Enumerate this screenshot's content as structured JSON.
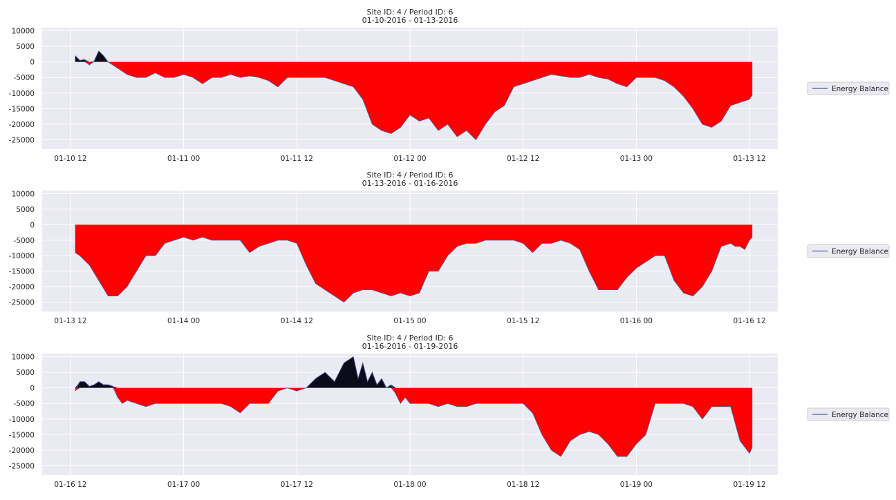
{
  "chart_data": [
    {
      "type": "area",
      "title_line1": "Site ID: 4 / Period ID: 6",
      "title_line2": "01-10-2016 - 01-13-2016",
      "legend": "Energy Balance",
      "legend_placement": "center-right",
      "grid": true,
      "ylim": [
        -28000,
        11000
      ],
      "yticks": [
        10000,
        5000,
        0,
        -5000,
        -10000,
        -15000,
        -20000,
        -25000
      ],
      "xlim_hours": [
        -3,
        75
      ],
      "xticks": [
        "01-10 12",
        "01-11 00",
        "01-11 12",
        "01-12 00",
        "01-12 12",
        "01-13 00",
        "01-13 12"
      ],
      "x_start": "01-10 12",
      "x": [
        0.5,
        1,
        1.5,
        2,
        2.5,
        3,
        3.5,
        4,
        5,
        6,
        7,
        8,
        9,
        10,
        11,
        12,
        13,
        14,
        15,
        16,
        17,
        18,
        19,
        20,
        21,
        22,
        23,
        24,
        25,
        26,
        27,
        28,
        29,
        30,
        31,
        32,
        33,
        34,
        35,
        36,
        37,
        38,
        39,
        40,
        41,
        42,
        43,
        44,
        45,
        46,
        47,
        48,
        49,
        50,
        51,
        52,
        53,
        54,
        55,
        56,
        57,
        58,
        59,
        60,
        61,
        62,
        63,
        64,
        65,
        66,
        67,
        68,
        69,
        70,
        71,
        72,
        72.3
      ],
      "values": [
        2000,
        500,
        800,
        -1000,
        200,
        3500,
        2000,
        0,
        -2000,
        -4000,
        -5000,
        -5000,
        -3500,
        -5000,
        -5000,
        -4000,
        -5000,
        -7000,
        -5000,
        -5000,
        -4000,
        -5000,
        -4500,
        -5000,
        -6000,
        -8000,
        -5000,
        -5000,
        -5000,
        -5000,
        -5000,
        -6000,
        -7000,
        -8000,
        -12000,
        -20000,
        -22000,
        -23000,
        -21000,
        -17000,
        -19000,
        -18000,
        -22000,
        -20000,
        -24000,
        -22000,
        -25000,
        -20000,
        -16000,
        -14000,
        -8000,
        -7000,
        -6000,
        -5000,
        -4000,
        -4500,
        -5000,
        -5000,
        -4000,
        -5000,
        -5500,
        -7000,
        -8000,
        -5000,
        -5000,
        -5000,
        -6000,
        -8000,
        -11000,
        -15000,
        -20000,
        -21000,
        -19000,
        -14000,
        -13000,
        -12000,
        -10500
      ]
    },
    {
      "type": "area",
      "title_line1": "Site ID: 4 / Period ID: 6",
      "title_line2": "01-13-2016 - 01-16-2016",
      "legend": "Energy Balance",
      "legend_placement": "center-right",
      "grid": true,
      "ylim": [
        -28000,
        11000
      ],
      "yticks": [
        10000,
        5000,
        0,
        -5000,
        -10000,
        -15000,
        -20000,
        -25000
      ],
      "xlim_hours": [
        -3,
        75
      ],
      "xticks": [
        "01-13 12",
        "01-14 00",
        "01-14 12",
        "01-15 00",
        "01-15 12",
        "01-16 00",
        "01-16 12"
      ],
      "x_start": "01-13 12",
      "x": [
        0.5,
        1,
        2,
        3,
        4,
        5,
        6,
        7,
        8,
        9,
        10,
        11,
        12,
        13,
        14,
        15,
        16,
        17,
        18,
        19,
        20,
        21,
        22,
        23,
        24,
        25,
        26,
        27,
        28,
        29,
        30,
        31,
        32,
        33,
        34,
        35,
        36,
        37,
        38,
        39,
        40,
        41,
        42,
        43,
        44,
        45,
        46,
        47,
        48,
        49,
        50,
        51,
        52,
        53,
        54,
        55,
        56,
        57,
        58,
        59,
        60,
        61,
        62,
        63,
        64,
        65,
        66,
        67,
        68,
        69,
        70,
        70.5,
        71,
        71.5,
        72,
        72.3
      ],
      "values": [
        -9000,
        -10000,
        -13000,
        -18000,
        -23000,
        -23000,
        -20000,
        -15000,
        -10000,
        -10000,
        -6000,
        -5000,
        -4000,
        -5000,
        -4000,
        -5000,
        -5000,
        -5000,
        -5000,
        -9000,
        -7000,
        -6000,
        -5000,
        -5000,
        -6000,
        -13000,
        -19000,
        -21000,
        -23000,
        -25000,
        -22000,
        -21000,
        -21000,
        -22000,
        -23000,
        -22000,
        -23000,
        -22000,
        -15000,
        -15000,
        -10000,
        -7000,
        -6000,
        -6000,
        -5000,
        -5000,
        -5000,
        -5000,
        -6000,
        -9000,
        -6000,
        -6000,
        -5000,
        -6000,
        -8000,
        -15000,
        -21000,
        -21000,
        -21000,
        -17000,
        -14000,
        -12000,
        -10000,
        -10000,
        -18000,
        -22000,
        -23000,
        -20000,
        -15000,
        -7000,
        -6000,
        -7000,
        -7000,
        -8000,
        -5000,
        -4000
      ]
    },
    {
      "type": "area",
      "title_line1": "Site ID: 4 / Period ID: 6",
      "title_line2": "01-16-2016 - 01-19-2016",
      "legend": "Energy Balance",
      "legend_placement": "center-right",
      "grid": true,
      "ylim": [
        -28000,
        11000
      ],
      "yticks": [
        10000,
        5000,
        0,
        -5000,
        -10000,
        -15000,
        -20000,
        -25000
      ],
      "xlim_hours": [
        -3,
        75
      ],
      "xticks": [
        "01-16 12",
        "01-17 00",
        "01-17 12",
        "01-18 00",
        "01-18 12",
        "01-19 00",
        "01-19 12"
      ],
      "x_start": "01-16 12",
      "x": [
        0.5,
        1,
        1.5,
        2,
        2.5,
        3,
        3.5,
        4,
        4.5,
        5,
        5.5,
        6,
        7,
        8,
        9,
        10,
        11,
        12,
        13,
        14,
        15,
        16,
        17,
        18,
        19,
        20,
        21,
        22,
        23,
        24,
        25,
        26,
        27,
        28,
        29,
        30,
        30.5,
        31,
        31.5,
        32,
        32.5,
        33,
        33.5,
        34,
        34.5,
        35,
        35.5,
        36,
        37,
        38,
        39,
        40,
        41,
        42,
        43,
        44,
        45,
        46,
        47,
        48,
        49,
        50,
        51,
        52,
        53,
        54,
        55,
        56,
        57,
        58,
        59,
        60,
        61,
        62,
        63,
        64,
        65,
        66,
        67,
        68,
        69,
        70,
        71,
        72,
        72.3
      ],
      "values": [
        -1000,
        2000,
        2000,
        500,
        1000,
        2000,
        1000,
        1000,
        500,
        -3000,
        -5000,
        -4000,
        -5000,
        -6000,
        -5000,
        -5000,
        -5000,
        -5000,
        -5000,
        -5000,
        -5000,
        -5000,
        -6000,
        -8000,
        -5000,
        -5000,
        -5000,
        -1000,
        0,
        -1000,
        0,
        3000,
        5000,
        2000,
        8000,
        10000,
        3000,
        8000,
        2000,
        5000,
        1000,
        3000,
        0,
        1000,
        -2000,
        -5000,
        -3000,
        -5000,
        -5000,
        -5000,
        -6000,
        -5000,
        -6000,
        -6000,
        -5000,
        -5000,
        -5000,
        -5000,
        -5000,
        -5000,
        -8000,
        -15000,
        -20000,
        -22000,
        -17000,
        -15000,
        -14000,
        -15000,
        -18000,
        -22000,
        -22000,
        -18000,
        -15000,
        -5000,
        -5000,
        -5000,
        -5000,
        -6000,
        -10000,
        -6000,
        -6000,
        -6000,
        -17000,
        -21000,
        -19000
      ]
    }
  ]
}
